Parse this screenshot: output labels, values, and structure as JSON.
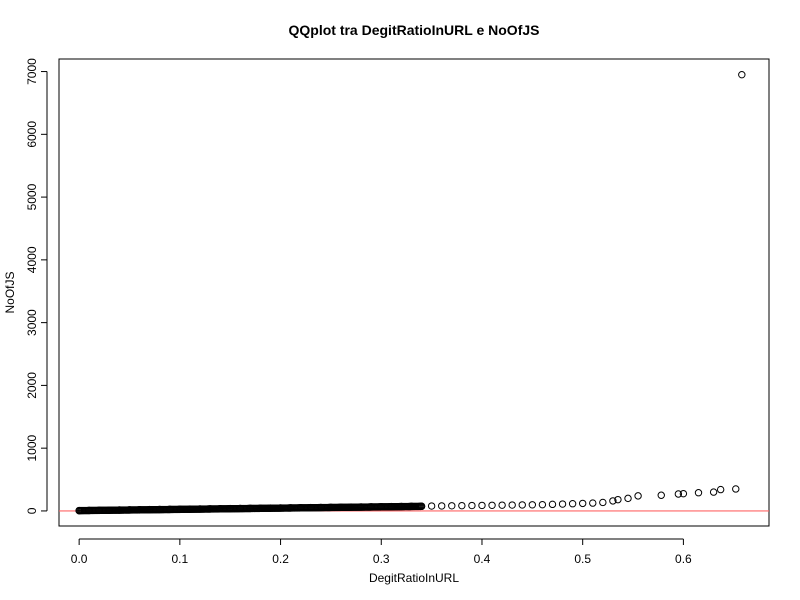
{
  "chart_data": {
    "type": "scatter",
    "title": "QQplot tra DegitRatioInURL e NoOfJS",
    "xlabel": "DegitRatioInURL",
    "ylabel": "NoOfJS",
    "xlim": [
      -0.02,
      0.685
    ],
    "ylim": [
      -240,
      7200
    ],
    "x_ticks": [
      0,
      0.1,
      0.2,
      0.3,
      0.4,
      0.5,
      0.6
    ],
    "x_tick_labels": [
      "0.0",
      "0.1",
      "0.2",
      "0.3",
      "0.4",
      "0.5",
      "0.6"
    ],
    "y_ticks": [
      0,
      1000,
      2000,
      3000,
      4000,
      5000,
      6000,
      7000
    ],
    "y_tick_labels": [
      "0",
      "1000",
      "2000",
      "3000",
      "4000",
      "5000",
      "6000",
      "7000"
    ],
    "reference_line": {
      "y": 0,
      "color": "#ff6666"
    },
    "point_color": "#000000",
    "grid": false,
    "series": [
      {
        "points": [
          [
            0.0,
            5
          ],
          [
            0.01,
            8
          ],
          [
            0.02,
            10
          ],
          [
            0.03,
            12
          ],
          [
            0.04,
            15
          ],
          [
            0.05,
            18
          ],
          [
            0.06,
            20
          ],
          [
            0.07,
            22
          ],
          [
            0.08,
            24
          ],
          [
            0.09,
            26
          ],
          [
            0.1,
            28
          ],
          [
            0.11,
            30
          ],
          [
            0.12,
            32
          ],
          [
            0.13,
            34
          ],
          [
            0.14,
            36
          ],
          [
            0.15,
            38
          ],
          [
            0.16,
            40
          ],
          [
            0.17,
            42
          ],
          [
            0.18,
            44
          ],
          [
            0.19,
            46
          ],
          [
            0.2,
            48
          ],
          [
            0.21,
            50
          ],
          [
            0.22,
            52
          ],
          [
            0.23,
            54
          ],
          [
            0.24,
            56
          ],
          [
            0.25,
            58
          ],
          [
            0.26,
            60
          ],
          [
            0.27,
            62
          ],
          [
            0.28,
            64
          ],
          [
            0.29,
            66
          ],
          [
            0.3,
            68
          ],
          [
            0.31,
            70
          ],
          [
            0.32,
            72
          ],
          [
            0.33,
            74
          ],
          [
            0.34,
            76
          ],
          [
            0.35,
            78
          ],
          [
            0.36,
            80
          ],
          [
            0.37,
            82
          ],
          [
            0.38,
            84
          ],
          [
            0.39,
            86
          ],
          [
            0.4,
            88
          ],
          [
            0.41,
            90
          ],
          [
            0.42,
            92
          ],
          [
            0.43,
            94
          ],
          [
            0.44,
            96
          ],
          [
            0.45,
            98
          ],
          [
            0.46,
            100
          ],
          [
            0.47,
            105
          ],
          [
            0.48,
            110
          ],
          [
            0.49,
            115
          ],
          [
            0.5,
            120
          ],
          [
            0.51,
            125
          ],
          [
            0.52,
            135
          ],
          [
            0.53,
            160
          ],
          [
            0.535,
            180
          ],
          [
            0.545,
            200
          ],
          [
            0.555,
            240
          ],
          [
            0.578,
            250
          ],
          [
            0.595,
            270
          ],
          [
            0.6,
            275
          ],
          [
            0.615,
            290
          ],
          [
            0.63,
            300
          ],
          [
            0.637,
            340
          ],
          [
            0.652,
            350
          ],
          [
            0.658,
            6950
          ]
        ]
      }
    ]
  }
}
